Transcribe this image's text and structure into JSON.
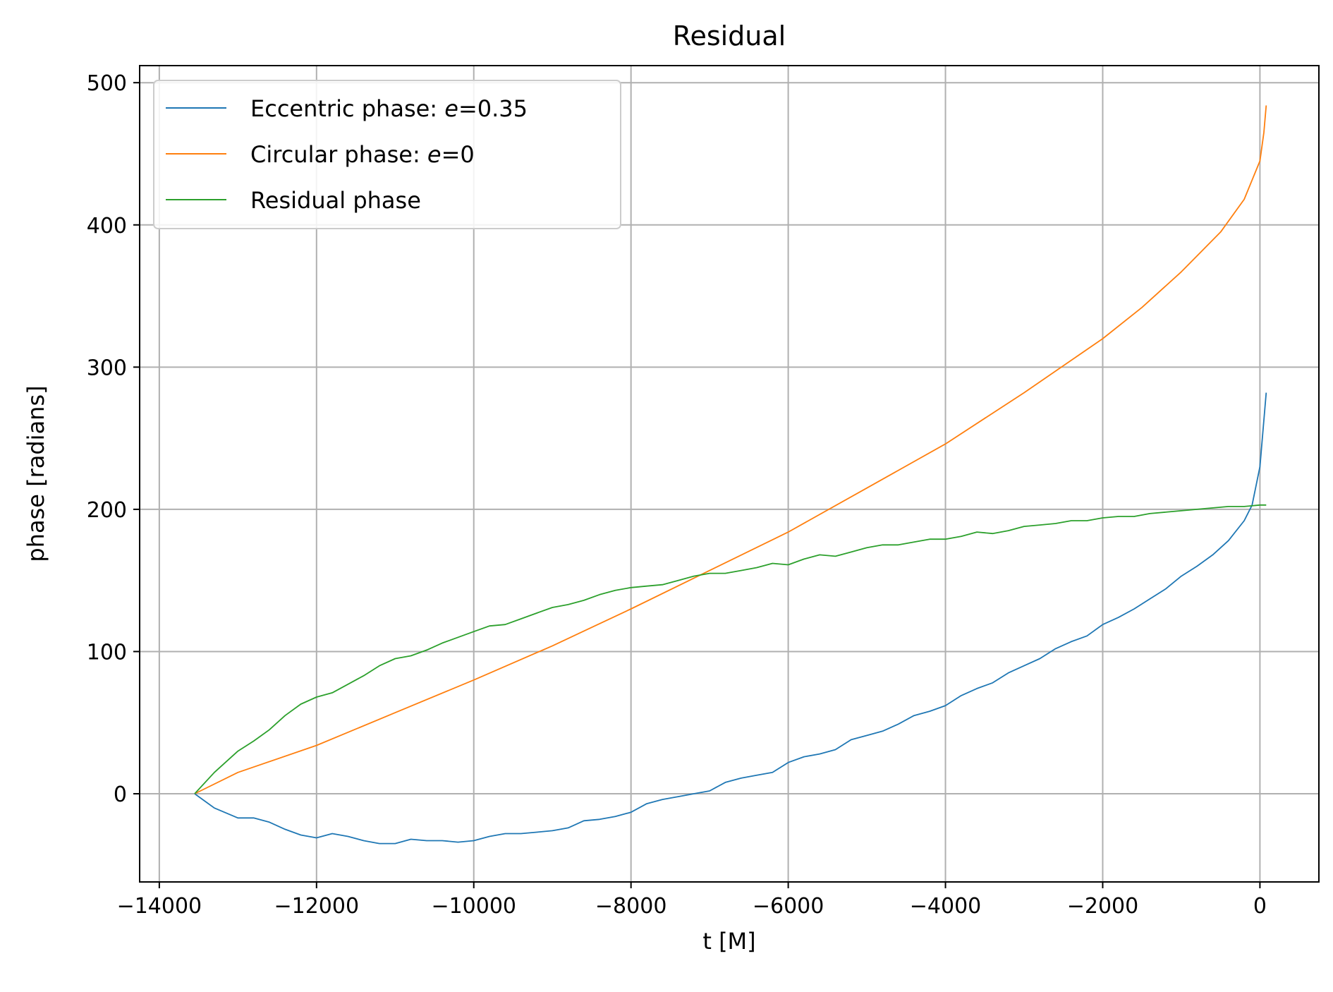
{
  "chart_data": {
    "type": "line",
    "title": "Residual",
    "xlabel": "t [M]",
    "ylabel": "phase [radians]",
    "xlim": [
      -14250,
      750
    ],
    "ylim": [
      -62,
      512
    ],
    "xticks": [
      -14000,
      -12000,
      -10000,
      -8000,
      -6000,
      -4000,
      -2000,
      0
    ],
    "xtick_labels": [
      "−14000",
      "−12000",
      "−10000",
      "−8000",
      "−6000",
      "−4000",
      "−2000",
      "0"
    ],
    "yticks": [
      0,
      100,
      200,
      300,
      400,
      500
    ],
    "ytick_labels": [
      "0",
      "100",
      "200",
      "300",
      "400",
      "500"
    ],
    "grid": true,
    "legend_position": "upper-left",
    "series": [
      {
        "name": "Eccentric phase: e=0.35",
        "legend_prefix": "Eccentric phase: ",
        "legend_var": "e",
        "legend_suffix": "=0.35",
        "color": "#1f77b4",
        "x": [
          -13550,
          -13300,
          -13000,
          -12800,
          -12600,
          -12400,
          -12200,
          -12000,
          -11800,
          -11600,
          -11400,
          -11200,
          -11000,
          -10800,
          -10600,
          -10400,
          -10200,
          -10000,
          -9800,
          -9600,
          -9400,
          -9200,
          -9000,
          -8800,
          -8600,
          -8400,
          -8200,
          -8000,
          -7800,
          -7600,
          -7400,
          -7200,
          -7000,
          -6800,
          -6600,
          -6400,
          -6200,
          -6000,
          -5800,
          -5600,
          -5400,
          -5200,
          -5000,
          -4800,
          -4600,
          -4400,
          -4200,
          -4000,
          -3800,
          -3600,
          -3400,
          -3200,
          -3000,
          -2800,
          -2600,
          -2400,
          -2200,
          -2000,
          -1800,
          -1600,
          -1400,
          -1200,
          -1000,
          -800,
          -600,
          -400,
          -200,
          -100,
          0,
          80
        ],
        "y": [
          0,
          -10,
          -17,
          -17,
          -20,
          -25,
          -29,
          -31,
          -28,
          -30,
          -33,
          -35,
          -35,
          -32,
          -33,
          -33,
          -34,
          -33,
          -30,
          -28,
          -28,
          -27,
          -26,
          -24,
          -19,
          -18,
          -16,
          -13,
          -7,
          -4,
          -2,
          0,
          2,
          8,
          11,
          13,
          15,
          22,
          26,
          28,
          31,
          38,
          41,
          44,
          49,
          55,
          58,
          62,
          69,
          74,
          78,
          85,
          90,
          95,
          102,
          107,
          111,
          119,
          124,
          130,
          137,
          144,
          153,
          160,
          168,
          178,
          192,
          203,
          230,
          282
        ]
      },
      {
        "name": "Circular phase: e=0",
        "legend_prefix": "Circular phase: ",
        "legend_var": "e",
        "legend_suffix": "=0",
        "color": "#ff7f0e",
        "x": [
          -13550,
          -13000,
          -12000,
          -11000,
          -10000,
          -9000,
          -8000,
          -7000,
          -6000,
          -5000,
          -4000,
          -3000,
          -2000,
          -1500,
          -1000,
          -500,
          -200,
          0,
          50,
          80
        ],
        "y": [
          0,
          15,
          34,
          57,
          80,
          104,
          130,
          157,
          184,
          215,
          246,
          282,
          320,
          342,
          367,
          395,
          418,
          445,
          465,
          484
        ]
      },
      {
        "name": "Residual phase",
        "legend_prefix": "Residual phase",
        "legend_var": "",
        "legend_suffix": "",
        "color": "#2ca02c",
        "x": [
          -13550,
          -13300,
          -13000,
          -12800,
          -12600,
          -12400,
          -12200,
          -12000,
          -11800,
          -11600,
          -11400,
          -11200,
          -11000,
          -10800,
          -10600,
          -10400,
          -10200,
          -10000,
          -9800,
          -9600,
          -9400,
          -9200,
          -9000,
          -8800,
          -8600,
          -8400,
          -8200,
          -8000,
          -7800,
          -7600,
          -7400,
          -7200,
          -7000,
          -6800,
          -6600,
          -6400,
          -6200,
          -6000,
          -5800,
          -5600,
          -5400,
          -5200,
          -5000,
          -4800,
          -4600,
          -4400,
          -4200,
          -4000,
          -3800,
          -3600,
          -3400,
          -3200,
          -3000,
          -2800,
          -2600,
          -2400,
          -2200,
          -2000,
          -1800,
          -1600,
          -1400,
          -1200,
          -1000,
          -800,
          -600,
          -400,
          -200,
          0,
          80
        ],
        "y": [
          0,
          15,
          30,
          37,
          45,
          55,
          63,
          68,
          71,
          77,
          83,
          90,
          95,
          97,
          101,
          106,
          110,
          114,
          118,
          119,
          123,
          127,
          131,
          133,
          136,
          140,
          143,
          145,
          146,
          147,
          150,
          153,
          155,
          155,
          157,
          159,
          162,
          161,
          165,
          168,
          167,
          170,
          173,
          175,
          175,
          177,
          179,
          179,
          181,
          184,
          183,
          185,
          188,
          189,
          190,
          192,
          192,
          194,
          195,
          195,
          197,
          198,
          199,
          200,
          201,
          202,
          202,
          203,
          203
        ]
      }
    ]
  }
}
